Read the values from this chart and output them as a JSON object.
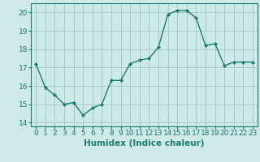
{
  "x": [
    0,
    1,
    2,
    3,
    4,
    5,
    6,
    7,
    8,
    9,
    10,
    11,
    12,
    13,
    14,
    15,
    16,
    17,
    18,
    19,
    20,
    21,
    22,
    23
  ],
  "y": [
    17.2,
    15.9,
    15.5,
    15.0,
    15.1,
    14.4,
    14.8,
    15.0,
    16.3,
    16.3,
    17.2,
    17.4,
    17.5,
    18.1,
    19.9,
    20.1,
    20.1,
    19.7,
    18.2,
    18.3,
    17.1,
    17.3,
    17.3,
    17.3
  ],
  "line_color": "#1a7a6e",
  "marker": "D",
  "markersize": 2.0,
  "linewidth": 1.0,
  "bg_color": "#ceeae7",
  "grid_color_minor": "#b8d8d4",
  "grid_color_major": "#9fc8c4",
  "xlabel": "Humidex (Indice chaleur)",
  "xlim": [
    -0.5,
    23.5
  ],
  "ylim": [
    13.8,
    20.5
  ],
  "yticks": [
    14,
    15,
    16,
    17,
    18,
    19,
    20
  ],
  "xticks": [
    0,
    1,
    2,
    3,
    4,
    5,
    6,
    7,
    8,
    9,
    10,
    11,
    12,
    13,
    14,
    15,
    16,
    17,
    18,
    19,
    20,
    21,
    22,
    23
  ],
  "tick_fontsize": 6.5,
  "xlabel_fontsize": 7.5
}
